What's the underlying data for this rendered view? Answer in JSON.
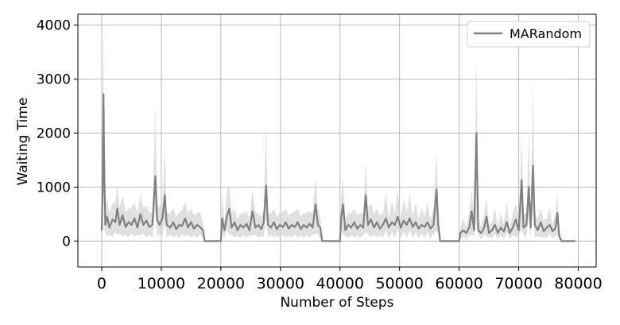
{
  "chart_data": {
    "type": "line",
    "title": "",
    "xlabel": "Number of Steps",
    "ylabel": "Waiting Time",
    "xlim": [
      -4000,
      83000
    ],
    "ylim": [
      -480,
      4200
    ],
    "x_ticks": [
      0,
      10000,
      20000,
      30000,
      40000,
      50000,
      60000,
      70000,
      80000
    ],
    "y_ticks": [
      0,
      1000,
      2000,
      3000,
      4000
    ],
    "grid": true,
    "legend": {
      "position": "top-right"
    },
    "series": [
      {
        "name": "MARandom",
        "color": "#808080",
        "band_color": "#d3d3d3",
        "points": [
          [
            0,
            200
          ],
          [
            150,
            900
          ],
          [
            300,
            2720
          ],
          [
            450,
            1200
          ],
          [
            600,
            300
          ],
          [
            900,
            450
          ],
          [
            1300,
            250
          ],
          [
            1800,
            400
          ],
          [
            2300,
            350
          ],
          [
            2600,
            600
          ],
          [
            3000,
            300
          ],
          [
            3500,
            480
          ],
          [
            4000,
            260
          ],
          [
            4500,
            350
          ],
          [
            5000,
            300
          ],
          [
            5500,
            420
          ],
          [
            6000,
            250
          ],
          [
            6500,
            500
          ],
          [
            7000,
            300
          ],
          [
            7500,
            380
          ],
          [
            8000,
            260
          ],
          [
            8500,
            300
          ],
          [
            9000,
            1200
          ],
          [
            9300,
            400
          ],
          [
            9700,
            300
          ],
          [
            10200,
            420
          ],
          [
            10600,
            850
          ],
          [
            10900,
            300
          ],
          [
            11500,
            250
          ],
          [
            12000,
            350
          ],
          [
            12500,
            220
          ],
          [
            13000,
            300
          ],
          [
            13500,
            280
          ],
          [
            14000,
            420
          ],
          [
            14500,
            250
          ],
          [
            15000,
            350
          ],
          [
            15500,
            230
          ],
          [
            16000,
            300
          ],
          [
            16500,
            260
          ],
          [
            17000,
            200
          ],
          [
            17300,
            0
          ],
          [
            20000,
            0
          ],
          [
            20200,
            420
          ],
          [
            20600,
            200
          ],
          [
            21000,
            450
          ],
          [
            21400,
            600
          ],
          [
            21800,
            250
          ],
          [
            22300,
            350
          ],
          [
            22800,
            200
          ],
          [
            23300,
            300
          ],
          [
            23800,
            250
          ],
          [
            24300,
            320
          ],
          [
            24800,
            200
          ],
          [
            25300,
            550
          ],
          [
            25800,
            250
          ],
          [
            26300,
            300
          ],
          [
            26800,
            220
          ],
          [
            27200,
            350
          ],
          [
            27600,
            1030
          ],
          [
            27900,
            300
          ],
          [
            28400,
            250
          ],
          [
            28900,
            350
          ],
          [
            29400,
            220
          ],
          [
            29900,
            300
          ],
          [
            30400,
            260
          ],
          [
            30900,
            350
          ],
          [
            31400,
            230
          ],
          [
            31900,
            300
          ],
          [
            32400,
            260
          ],
          [
            32900,
            350
          ],
          [
            33400,
            220
          ],
          [
            33900,
            300
          ],
          [
            34400,
            250
          ],
          [
            34900,
            320
          ],
          [
            35400,
            250
          ],
          [
            35900,
            680
          ],
          [
            36300,
            300
          ],
          [
            36700,
            250
          ],
          [
            37000,
            0
          ],
          [
            40000,
            0
          ],
          [
            40200,
            420
          ],
          [
            40500,
            680
          ],
          [
            40900,
            200
          ],
          [
            41400,
            300
          ],
          [
            41900,
            250
          ],
          [
            42400,
            350
          ],
          [
            42900,
            230
          ],
          [
            43400,
            300
          ],
          [
            43900,
            250
          ],
          [
            44300,
            850
          ],
          [
            44700,
            300
          ],
          [
            45200,
            400
          ],
          [
            45700,
            250
          ],
          [
            46200,
            350
          ],
          [
            46700,
            230
          ],
          [
            47200,
            300
          ],
          [
            47700,
            420
          ],
          [
            48200,
            250
          ],
          [
            48700,
            350
          ],
          [
            49200,
            300
          ],
          [
            49700,
            450
          ],
          [
            50200,
            250
          ],
          [
            50700,
            380
          ],
          [
            51200,
            300
          ],
          [
            51700,
            420
          ],
          [
            52200,
            260
          ],
          [
            52700,
            350
          ],
          [
            53200,
            230
          ],
          [
            53700,
            300
          ],
          [
            54200,
            260
          ],
          [
            54700,
            350
          ],
          [
            55200,
            230
          ],
          [
            55700,
            300
          ],
          [
            56200,
            960
          ],
          [
            56500,
            300
          ],
          [
            56800,
            0
          ],
          [
            60000,
            0
          ],
          [
            60200,
            150
          ],
          [
            60700,
            200
          ],
          [
            61200,
            150
          ],
          [
            61700,
            250
          ],
          [
            62100,
            550
          ],
          [
            62500,
            200
          ],
          [
            62900,
            2000
          ],
          [
            63200,
            200
          ],
          [
            63700,
            150
          ],
          [
            64200,
            250
          ],
          [
            64600,
            450
          ],
          [
            65000,
            150
          ],
          [
            65500,
            200
          ],
          [
            66000,
            300
          ],
          [
            66500,
            150
          ],
          [
            67000,
            250
          ],
          [
            67500,
            180
          ],
          [
            68000,
            350
          ],
          [
            68500,
            150
          ],
          [
            69000,
            250
          ],
          [
            69500,
            400
          ],
          [
            70000,
            200
          ],
          [
            70500,
            1130
          ],
          [
            70800,
            250
          ],
          [
            71300,
            300
          ],
          [
            71700,
            1000
          ],
          [
            72000,
            250
          ],
          [
            72400,
            1400
          ],
          [
            72700,
            300
          ],
          [
            73200,
            200
          ],
          [
            73700,
            350
          ],
          [
            74200,
            180
          ],
          [
            74700,
            250
          ],
          [
            75200,
            300
          ],
          [
            75700,
            180
          ],
          [
            76200,
            250
          ],
          [
            76500,
            520
          ],
          [
            76800,
            100
          ],
          [
            77200,
            0
          ],
          [
            79500,
            0
          ]
        ]
      }
    ]
  }
}
